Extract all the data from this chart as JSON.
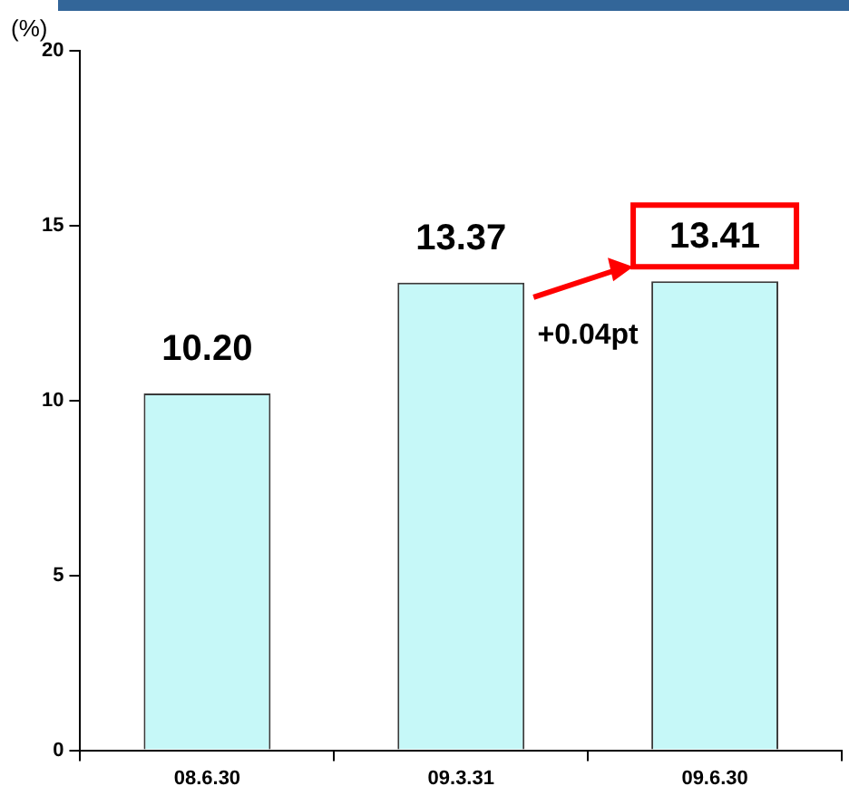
{
  "chart_data": {
    "type": "bar",
    "ylabel": "(%)",
    "categories": [
      "08.6.30",
      "09.3.31",
      "09.6.30"
    ],
    "values": [
      10.2,
      13.37,
      13.41
    ],
    "color": "#c6f8f8",
    "data_labels": true,
    "value_labels": [
      "10.20",
      "13.37",
      "13.41"
    ],
    "ylim": [
      0,
      20
    ],
    "yticks": [
      0,
      5,
      10,
      15,
      20
    ],
    "grid": false,
    "legend": false,
    "annotations": [
      "+0.04pt"
    ]
  }
}
